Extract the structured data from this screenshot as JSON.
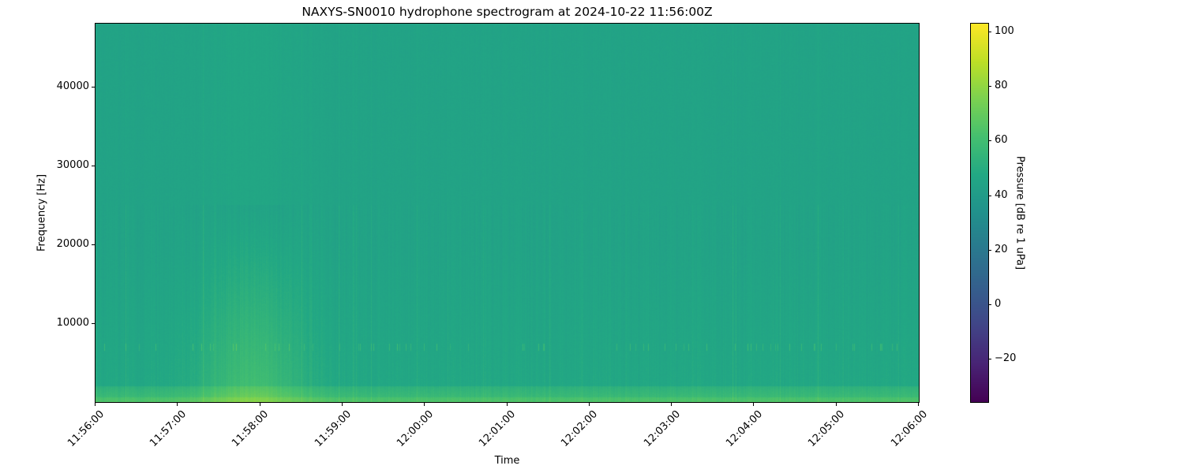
{
  "chart_data": {
    "type": "heatmap",
    "title": "NAXYS-SN0010 hydrophone spectrogram at 2024-10-22 11:56:00Z",
    "xlabel": "Time",
    "ylabel": "Frequency [Hz]",
    "x_range": [
      "11:56:00",
      "12:06:00"
    ],
    "x_ticks": [
      "11:56:00",
      "11:57:00",
      "11:58:00",
      "11:59:00",
      "12:00:00",
      "12:01:00",
      "12:02:00",
      "12:03:00",
      "12:04:00",
      "12:05:00",
      "12:06:00"
    ],
    "ylim": [
      0,
      48000
    ],
    "y_ticks": [
      10000,
      20000,
      30000,
      40000
    ],
    "grid": false,
    "colormap": "viridis",
    "colorbar": {
      "label": "Pressure [dB re 1 uPa]",
      "range": [
        -36,
        103
      ],
      "ticks": [
        -20,
        0,
        20,
        40,
        60,
        80,
        100
      ]
    }
  }
}
